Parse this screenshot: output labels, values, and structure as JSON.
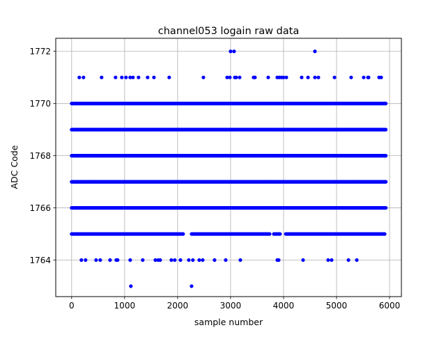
{
  "chart_data": {
    "type": "scatter",
    "title": "channel053 logain raw data",
    "xlabel": "sample number",
    "ylabel": "ADC Code",
    "xlim": [
      -300,
      6224
    ],
    "ylim": [
      1762.6,
      1772.5
    ],
    "grid": true,
    "marker_color": "#0000ff",
    "x_ticks": [
      0,
      1000,
      2000,
      3000,
      4000,
      5000,
      6000
    ],
    "y_ticks": [
      1764,
      1766,
      1768,
      1770,
      1772
    ],
    "dense_rows": [
      {
        "y": 1770,
        "x_ranges": [
          [
            0,
            5930
          ]
        ]
      },
      {
        "y": 1769,
        "x_ranges": [
          [
            0,
            5930
          ]
        ]
      },
      {
        "y": 1768,
        "x_ranges": [
          [
            0,
            5930
          ]
        ]
      },
      {
        "y": 1767,
        "x_ranges": [
          [
            0,
            5930
          ]
        ]
      },
      {
        "y": 1766,
        "x_ranges": [
          [
            0,
            5930
          ]
        ]
      },
      {
        "y": 1765,
        "x_ranges": [
          [
            0,
            2105
          ],
          [
            2263,
            3737
          ],
          [
            3816,
            3934
          ],
          [
            4040,
            5908
          ]
        ]
      }
    ],
    "sparse_points": [
      {
        "y": 1772,
        "x": [
          3000,
          3066,
          4592
        ]
      },
      {
        "y": 1771,
        "x": [
          145,
          224,
          566,
          829,
          947,
          1026,
          1105,
          1158,
          1263,
          1434,
          1553,
          1842,
          2487,
          2934,
          2987,
          3079,
          3105,
          3171,
          3434,
          3461,
          3711,
          3882,
          3921,
          3961,
          4000,
          4053,
          4342,
          4461,
          4592,
          4658,
          4961,
          5276,
          5513,
          5592,
          5605,
          5803,
          5842
        ]
      },
      {
        "y": 1764,
        "x": [
          184,
          263,
          461,
          539,
          724,
          842,
          868,
          1105,
          1342,
          1579,
          1632,
          1671,
          1882,
          1947,
          2053,
          2211,
          2289,
          2408,
          2474,
          2697,
          2908,
          3184,
          3882,
          3908,
          4368,
          4842,
          4908,
          5224,
          5382
        ]
      },
      {
        "y": 1763,
        "x": [
          1118,
          2263
        ]
      }
    ]
  }
}
